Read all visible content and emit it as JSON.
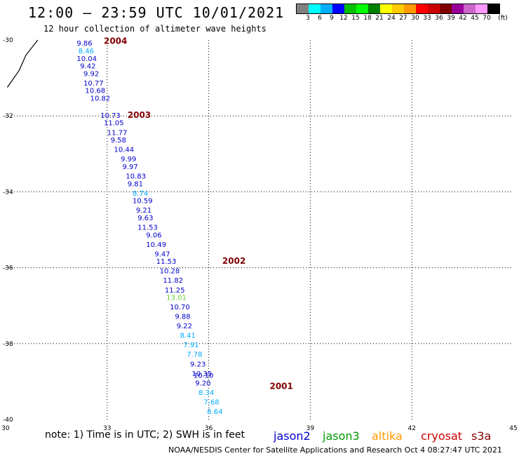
{
  "title": "12:00 — 23:59 UTC 10/01/2021",
  "subtitle": "12 hour collection of altimeter wave heights",
  "colorscale": {
    "colors": [
      "#808080",
      "#00ffff",
      "#00b0ff",
      "#0000ff",
      "#00c000",
      "#00ff00",
      "#008000",
      "#ffff00",
      "#ffcc00",
      "#ff9900",
      "#ff0000",
      "#cc0000",
      "#800000",
      "#990099",
      "#cc66cc",
      "#ff99ff",
      "#000000"
    ],
    "labels": [
      "3",
      "6",
      "9",
      "12",
      "15",
      "18",
      "21",
      "24",
      "27",
      "30",
      "33",
      "36",
      "39",
      "42",
      "45",
      "70"
    ],
    "unit": "(ft)"
  },
  "axes": {
    "x_ticks": [
      "30",
      "33",
      "36",
      "39",
      "42",
      "45"
    ],
    "y_ticks": [
      "-30",
      "-32",
      "-34",
      "-36",
      "-38",
      "-40"
    ]
  },
  "note": "note:  1) Time is in UTC;  2) SWH is in feet",
  "satellites": [
    {
      "name": "jason2",
      "color": "#0000cc"
    },
    {
      "name": "jason3",
      "color": "#009900"
    },
    {
      "name": "altika",
      "color": "#ff9900"
    },
    {
      "name": "cryosat",
      "color": "#cc0000"
    },
    {
      "name": "s3a",
      "color": "#800000"
    }
  ],
  "credit": "NOAA/NESDIS Center for Satellite Applications and Research    Oct  4 08:27:47 UTC 2021",
  "chart_data": {
    "type": "scatter",
    "x_range": [
      30,
      45
    ],
    "y_range": [
      -40,
      -30
    ],
    "grid": true,
    "coast": [
      [
        30.05,
        -31.25
      ],
      [
        30.4,
        -30.8
      ],
      [
        30.6,
        -30.4
      ],
      [
        30.95,
        -30.0
      ]
    ],
    "time_labels": [
      {
        "label": "2004",
        "lon": 32.9,
        "lat": -30.1
      },
      {
        "label": "2003",
        "lon": 33.6,
        "lat": -32.05
      },
      {
        "label": "2002",
        "lon": 36.4,
        "lat": -35.9
      },
      {
        "label": "2001",
        "lon": 37.8,
        "lat": -39.2
      }
    ],
    "points": [
      {
        "v": "9.86",
        "lon": 32.1,
        "lat": -30.15,
        "c": "#0000cc"
      },
      {
        "v": "8.46",
        "lon": 32.15,
        "lat": -30.35,
        "c": "#00aaff"
      },
      {
        "v": "10.04",
        "lon": 32.1,
        "lat": -30.55,
        "c": "#0000cc"
      },
      {
        "v": "9.42",
        "lon": 32.2,
        "lat": -30.75,
        "c": "#0000cc"
      },
      {
        "v": "9.92",
        "lon": 32.3,
        "lat": -30.95,
        "c": "#0000cc"
      },
      {
        "v": "10.77",
        "lon": 32.3,
        "lat": -31.2,
        "c": "#0000cc"
      },
      {
        "v": "10.68",
        "lon": 32.35,
        "lat": -31.4,
        "c": "#0000cc"
      },
      {
        "v": "10.82",
        "lon": 32.5,
        "lat": -31.6,
        "c": "#0000cc"
      },
      {
        "v": "10.73",
        "lon": 32.8,
        "lat": -32.05,
        "c": "#0000cc"
      },
      {
        "v": "11.05",
        "lon": 32.9,
        "lat": -32.25,
        "c": "#0000cc"
      },
      {
        "v": "11.77",
        "lon": 33.0,
        "lat": -32.5,
        "c": "#0000cc"
      },
      {
        "v": "9.58",
        "lon": 33.1,
        "lat": -32.7,
        "c": "#0000cc"
      },
      {
        "v": "10.44",
        "lon": 33.2,
        "lat": -32.95,
        "c": "#0000cc"
      },
      {
        "v": "9.99",
        "lon": 33.4,
        "lat": -33.2,
        "c": "#0000cc"
      },
      {
        "v": "9.97",
        "lon": 33.45,
        "lat": -33.4,
        "c": "#0000cc"
      },
      {
        "v": "10.83",
        "lon": 33.55,
        "lat": -33.65,
        "c": "#0000cc"
      },
      {
        "v": "9.81",
        "lon": 33.6,
        "lat": -33.85,
        "c": "#0000cc"
      },
      {
        "v": "8.74",
        "lon": 33.75,
        "lat": -34.1,
        "c": "#00aaff"
      },
      {
        "v": "10.59",
        "lon": 33.75,
        "lat": -34.3,
        "c": "#0000cc"
      },
      {
        "v": "9.21",
        "lon": 33.85,
        "lat": -34.55,
        "c": "#0000cc"
      },
      {
        "v": "9.63",
        "lon": 33.9,
        "lat": -34.75,
        "c": "#0000cc"
      },
      {
        "v": "11.53",
        "lon": 33.9,
        "lat": -35.0,
        "c": "#0000cc"
      },
      {
        "v": "9.06",
        "lon": 34.15,
        "lat": -35.2,
        "c": "#0000cc"
      },
      {
        "v": "10.49",
        "lon": 34.15,
        "lat": -35.45,
        "c": "#0000cc"
      },
      {
        "v": "9.47",
        "lon": 34.4,
        "lat": -35.7,
        "c": "#0000cc"
      },
      {
        "v": "11.53",
        "lon": 34.45,
        "lat": -35.9,
        "c": "#0000cc"
      },
      {
        "v": "10.28",
        "lon": 34.55,
        "lat": -36.15,
        "c": "#0000cc"
      },
      {
        "v": "11.82",
        "lon": 34.65,
        "lat": -36.4,
        "c": "#0000cc"
      },
      {
        "v": "11.25",
        "lon": 34.7,
        "lat": -36.65,
        "c": "#0000cc"
      },
      {
        "v": "13.01",
        "lon": 34.75,
        "lat": -36.85,
        "c": "#66cc33"
      },
      {
        "v": "10.70",
        "lon": 34.85,
        "lat": -37.1,
        "c": "#0000cc"
      },
      {
        "v": "9.88",
        "lon": 35.0,
        "lat": -37.35,
        "c": "#0000cc"
      },
      {
        "v": "9.22",
        "lon": 35.05,
        "lat": -37.6,
        "c": "#0000cc"
      },
      {
        "v": "8.41",
        "lon": 35.15,
        "lat": -37.85,
        "c": "#00aaff"
      },
      {
        "v": "7.91",
        "lon": 35.25,
        "lat": -38.1,
        "c": "#00aaff"
      },
      {
        "v": "7.78",
        "lon": 35.35,
        "lat": -38.35,
        "c": "#00aaff"
      },
      {
        "v": "9.23",
        "lon": 35.45,
        "lat": -38.6,
        "c": "#0000cc"
      },
      {
        "v": "10.35",
        "lon": 35.5,
        "lat": -38.85,
        "c": "#0000cc"
      },
      {
        "v": "10.10",
        "lon": 35.55,
        "lat": -38.9,
        "c": "#0000cc"
      },
      {
        "v": "9.20",
        "lon": 35.6,
        "lat": -39.1,
        "c": "#0000cc"
      },
      {
        "v": "8.34",
        "lon": 35.7,
        "lat": -39.35,
        "c": "#00aaff"
      },
      {
        "v": "7.68",
        "lon": 35.85,
        "lat": -39.6,
        "c": "#00aaff"
      },
      {
        "v": "8.64",
        "lon": 35.95,
        "lat": -39.85,
        "c": "#00aaff"
      }
    ]
  }
}
